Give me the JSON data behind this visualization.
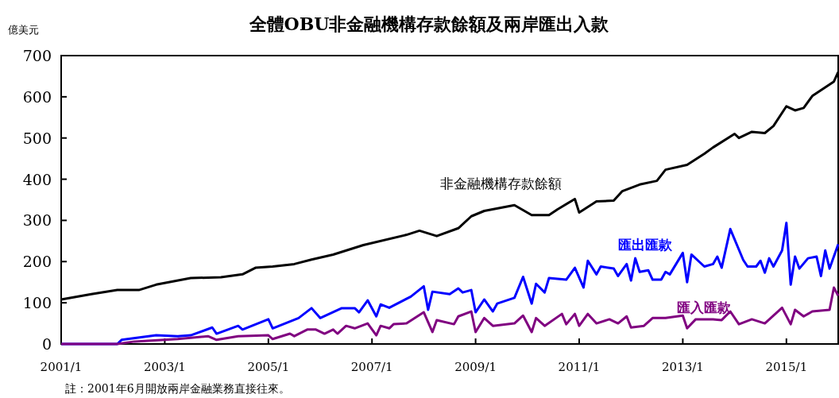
{
  "chart_data": {
    "type": "line",
    "title": "全體OBU非金融機構存款餘額及兩岸匯出入款",
    "ylabel": "億美元",
    "annotations": [
      "註：2001年6月開放兩岸金融業務直接往來。"
    ],
    "xlim": [
      "2001-01",
      "2016-01"
    ],
    "ylim": [
      0,
      700
    ],
    "yticks": [
      0,
      100,
      200,
      300,
      400,
      500,
      600,
      700
    ],
    "xticks": [
      {
        "value": "2001-01",
        "label": "2001/1"
      },
      {
        "value": "2003-01",
        "label": "2003/1"
      },
      {
        "value": "2005-01",
        "label": "2005/1"
      },
      {
        "value": "2007-01",
        "label": "2007/1"
      },
      {
        "value": "2009-01",
        "label": "2009/1"
      },
      {
        "value": "2011-01",
        "label": "2011/1"
      },
      {
        "value": "2013-01",
        "label": "2013/1"
      },
      {
        "value": "2015-01",
        "label": "2015/1"
      }
    ],
    "series": [
      {
        "name": "非金融機構存款餘額",
        "color": "#000000",
        "x": [
          "2001-01",
          "2001-08",
          "2002-02",
          "2002-07",
          "2002-11",
          "2003-07",
          "2004-02",
          "2004-07",
          "2004-10",
          "2005-02",
          "2005-07",
          "2005-11",
          "2006-04",
          "2006-11",
          "2007-09",
          "2007-12",
          "2008-04",
          "2008-09",
          "2008-12",
          "2009-03",
          "2009-10",
          "2010-02",
          "2010-06",
          "2010-08",
          "2010-12",
          "2011-01",
          "2011-05",
          "2011-09",
          "2011-11",
          "2012-03",
          "2012-07",
          "2012-09",
          "2013-02",
          "2013-06",
          "2013-08",
          "2014-01",
          "2014-02",
          "2014-05",
          "2014-08",
          "2014-10",
          "2015-01",
          "2015-03",
          "2015-05",
          "2015-07",
          "2015-12",
          "2016-01"
        ],
        "values": [
          108,
          121,
          131,
          131,
          144,
          160,
          162,
          169,
          185,
          188,
          194,
          205,
          217,
          240,
          265,
          275,
          262,
          281,
          310,
          323,
          337,
          313,
          313,
          327,
          352,
          319,
          346,
          348,
          371,
          387,
          396,
          423,
          435,
          462,
          477,
          510,
          500,
          515,
          512,
          529,
          577,
          567,
          573,
          602,
          637,
          660
        ]
      },
      {
        "name": "匯出匯款",
        "color": "#0000ff",
        "x": [
          "2001-01",
          "2002-02",
          "2002-03",
          "2002-11",
          "2003-04",
          "2003-07",
          "2003-12",
          "2004-01",
          "2004-06",
          "2004-07",
          "2005-01",
          "2005-02",
          "2005-08",
          "2005-11",
          "2006-01",
          "2006-06",
          "2006-09",
          "2006-10",
          "2006-12",
          "2007-02",
          "2007-03",
          "2007-05",
          "2007-10",
          "2008-01",
          "2008-02",
          "2008-03",
          "2008-07",
          "2008-09",
          "2008-10",
          "2008-12",
          "2009-01",
          "2009-03",
          "2009-05",
          "2009-06",
          "2009-10",
          "2009-12",
          "2010-02",
          "2010-03",
          "2010-05",
          "2010-06",
          "2010-10",
          "2010-12",
          "2011-02",
          "2011-03",
          "2011-05",
          "2011-06",
          "2011-09",
          "2011-10",
          "2011-12",
          "2012-01",
          "2012-02",
          "2012-03",
          "2012-05",
          "2012-06",
          "2012-08",
          "2012-09",
          "2012-10",
          "2013-01",
          "2013-02",
          "2013-03",
          "2013-06",
          "2013-08",
          "2013-09",
          "2013-10",
          "2013-12",
          "2014-03",
          "2014-04",
          "2014-06",
          "2014-07",
          "2014-08",
          "2014-09",
          "2014-10",
          "2014-12",
          "2015-01",
          "2015-02",
          "2015-03",
          "2015-04",
          "2015-06",
          "2015-08",
          "2015-09",
          "2015-10",
          "2015-11",
          "2016-01"
        ],
        "values": [
          0,
          0,
          10,
          21,
          19,
          21,
          40,
          25,
          44,
          35,
          60,
          38,
          63,
          87,
          63,
          87,
          87,
          77,
          106,
          67,
          96,
          88,
          115,
          140,
          83,
          127,
          121,
          135,
          125,
          131,
          77,
          108,
          79,
          98,
          112,
          163,
          98,
          146,
          125,
          160,
          156,
          185,
          137,
          202,
          169,
          188,
          183,
          165,
          194,
          154,
          208,
          175,
          179,
          156,
          156,
          175,
          169,
          221,
          150,
          217,
          188,
          194,
          212,
          185,
          279,
          204,
          188,
          188,
          202,
          173,
          208,
          188,
          227,
          294,
          144,
          212,
          183,
          208,
          212,
          165,
          227,
          183,
          242
        ]
      },
      {
        "name": "匯入匯款",
        "color": "#800080",
        "x": [
          "2001-01",
          "2002-02",
          "2002-06",
          "2003-04",
          "2003-11",
          "2004-01",
          "2004-06",
          "2005-01",
          "2005-02",
          "2005-06",
          "2005-07",
          "2005-10",
          "2005-12",
          "2006-02",
          "2006-04",
          "2006-05",
          "2006-07",
          "2006-09",
          "2006-12",
          "2007-02",
          "2007-03",
          "2007-05",
          "2007-06",
          "2007-09",
          "2008-01",
          "2008-03",
          "2008-04",
          "2008-08",
          "2008-09",
          "2008-12",
          "2009-01",
          "2009-03",
          "2009-05",
          "2009-10",
          "2009-12",
          "2010-02",
          "2010-03",
          "2010-05",
          "2010-09",
          "2010-10",
          "2010-12",
          "2011-01",
          "2011-03",
          "2011-05",
          "2011-08",
          "2011-10",
          "2011-12",
          "2012-01",
          "2012-04",
          "2012-06",
          "2012-09",
          "2013-01",
          "2013-02",
          "2013-04",
          "2013-08",
          "2013-10",
          "2013-12",
          "2014-02",
          "2014-05",
          "2014-08",
          "2014-12",
          "2015-02",
          "2015-03",
          "2015-05",
          "2015-07",
          "2015-11",
          "2015-12",
          "2016-01"
        ],
        "values": [
          0,
          0,
          6,
          12,
          19,
          10,
          19,
          21,
          12,
          25,
          19,
          35,
          35,
          25,
          35,
          25,
          44,
          38,
          50,
          21,
          44,
          38,
          48,
          50,
          77,
          29,
          58,
          48,
          67,
          79,
          29,
          63,
          44,
          50,
          69,
          29,
          63,
          44,
          73,
          48,
          73,
          44,
          73,
          50,
          60,
          50,
          67,
          40,
          44,
          63,
          63,
          69,
          38,
          60,
          60,
          58,
          79,
          48,
          60,
          50,
          88,
          48,
          83,
          67,
          79,
          83,
          137,
          117
        ]
      }
    ]
  }
}
